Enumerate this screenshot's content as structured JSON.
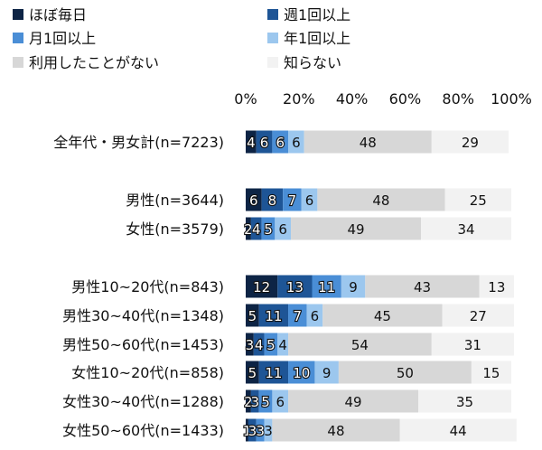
{
  "chart_data": {
    "type": "bar",
    "orientation": "horizontal",
    "stacked": true,
    "percent": true,
    "xlim": [
      0,
      100
    ],
    "ticks": [
      "0%",
      "20%",
      "40%",
      "60%",
      "80%",
      "100%"
    ],
    "legend_position": "top",
    "grid": false,
    "categories": [
      "全年代・男女計(n=7223)",
      "男性(n=3644)",
      "女性(n=3579)",
      "男性10~20代(n=843)",
      "男性30~40代(n=1348)",
      "男性50~60代(n=1453)",
      "女性10~20代(n=858)",
      "女性30~40代(n=1288)",
      "女性50~60代(n=1433)"
    ],
    "series": [
      {
        "name": "ほぼ毎日",
        "color": "#0d2445",
        "values": [
          4,
          6,
          2,
          12,
          5,
          3,
          5,
          2,
          1
        ]
      },
      {
        "name": "週1回以上",
        "color": "#1e5596",
        "values": [
          6,
          8,
          4,
          13,
          11,
          4,
          11,
          3,
          3
        ]
      },
      {
        "name": "月1回以上",
        "color": "#4a8ed6",
        "values": [
          6,
          7,
          5,
          11,
          7,
          5,
          10,
          5,
          3
        ]
      },
      {
        "name": "年1回以上",
        "color": "#9cc7ee",
        "values": [
          6,
          6,
          6,
          9,
          6,
          4,
          9,
          6,
          3
        ]
      },
      {
        "name": "利用したことがない",
        "color": "#d7d7d7",
        "values": [
          48,
          48,
          49,
          43,
          45,
          54,
          50,
          49,
          48
        ]
      },
      {
        "name": "知らない",
        "color": "#f2f2f2",
        "values": [
          29,
          25,
          34,
          13,
          27,
          31,
          15,
          35,
          44
        ]
      }
    ]
  }
}
